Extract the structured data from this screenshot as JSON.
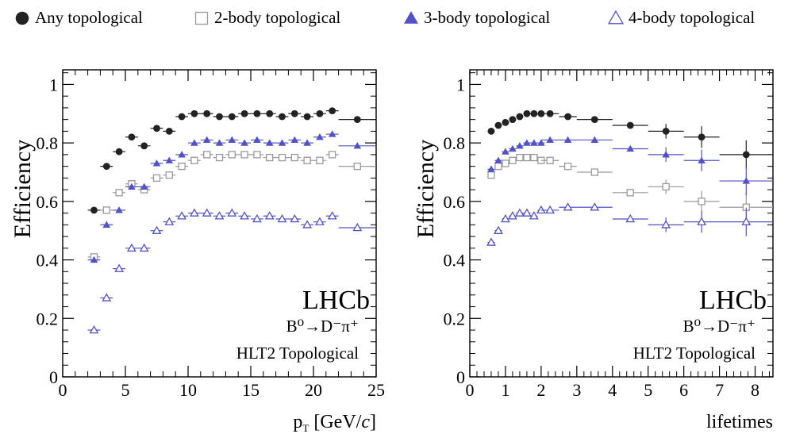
{
  "legend": [
    {
      "label": "Any topological",
      "marker": "filled-circle",
      "color": "#222222"
    },
    {
      "label": "2-body topological",
      "marker": "open-square",
      "color": "#9a9a9a"
    },
    {
      "label": "3-body topological",
      "marker": "filled-triangle",
      "color": "#5252c8"
    },
    {
      "label": "4-body topological",
      "marker": "open-triangle",
      "color": "#5252c8"
    }
  ],
  "chart_data": [
    {
      "type": "scatter",
      "xlabel": "p_T [GeV/c]",
      "xlabel_main": "p",
      "xlabel_sub": "T",
      "xlabel_rest": " [GeV/",
      "xlabel_c": "c",
      "xlabel_end": "]",
      "ylabel": "Efficiency",
      "xlim": [
        0,
        25
      ],
      "ylim": [
        0,
        1.05
      ],
      "xticks": [
        0,
        5,
        10,
        15,
        20,
        25
      ],
      "xtick_labels": [
        "0",
        "5",
        "10",
        "15",
        "20",
        "25"
      ],
      "yticks": [
        0,
        0.2,
        0.4,
        0.6,
        0.8,
        1
      ],
      "ytick_labels": [
        "0",
        "0.2",
        "0.4",
        "0.6",
        "0.8",
        "1"
      ],
      "grid": false,
      "experiment_label": "LHCb",
      "decay_label": "B⁰→D⁻π⁺",
      "trigger_label": "HLT2 Topological",
      "x": [
        2.5,
        3.5,
        4.5,
        5.5,
        6.5,
        7.5,
        8.5,
        9.5,
        10.5,
        11.5,
        12.5,
        13.5,
        14.5,
        15.5,
        16.5,
        17.5,
        18.5,
        19.5,
        20.5,
        21.5,
        23.5
      ],
      "xerr": [
        0.5,
        0.5,
        0.5,
        0.5,
        0.5,
        0.5,
        0.5,
        0.5,
        0.5,
        0.5,
        0.5,
        0.5,
        0.5,
        0.5,
        0.5,
        0.5,
        0.5,
        0.5,
        0.5,
        0.5,
        1.5
      ],
      "series": [
        {
          "marker": "filled-circle",
          "color": "#222222",
          "values": [
            0.57,
            0.72,
            0.77,
            0.82,
            0.79,
            0.85,
            0.84,
            0.89,
            0.9,
            0.9,
            0.89,
            0.89,
            0.9,
            0.9,
            0.9,
            0.89,
            0.9,
            0.89,
            0.9,
            0.91,
            0.88
          ]
        },
        {
          "marker": "open-square",
          "color": "#9a9a9a",
          "values": [
            0.41,
            0.57,
            0.63,
            0.66,
            0.64,
            0.68,
            0.69,
            0.72,
            0.74,
            0.76,
            0.75,
            0.76,
            0.76,
            0.76,
            0.75,
            0.75,
            0.75,
            0.74,
            0.74,
            0.76,
            0.72
          ]
        },
        {
          "marker": "filled-triangle",
          "color": "#5252c8",
          "values": [
            0.4,
            0.52,
            0.57,
            0.65,
            0.65,
            0.73,
            0.74,
            0.76,
            0.8,
            0.81,
            0.8,
            0.81,
            0.8,
            0.81,
            0.8,
            0.8,
            0.81,
            0.8,
            0.82,
            0.83,
            0.79
          ]
        },
        {
          "marker": "open-triangle",
          "color": "#5252c8",
          "values": [
            0.16,
            0.27,
            0.37,
            0.44,
            0.44,
            0.5,
            0.53,
            0.55,
            0.56,
            0.56,
            0.55,
            0.56,
            0.55,
            0.54,
            0.55,
            0.54,
            0.54,
            0.52,
            0.53,
            0.55,
            0.51
          ]
        }
      ]
    },
    {
      "type": "scatter",
      "xlabel": "lifetimes",
      "ylabel": "Efficiency",
      "xlim": [
        0,
        8.5
      ],
      "ylim": [
        0,
        1.05
      ],
      "xticks": [
        0,
        1,
        2,
        3,
        4,
        5,
        6,
        7,
        8
      ],
      "xtick_labels": [
        "0",
        "1",
        "2",
        "3",
        "4",
        "5",
        "6",
        "7",
        "8"
      ],
      "yticks": [
        0,
        0.2,
        0.4,
        0.6,
        0.8,
        1
      ],
      "ytick_labels": [
        "0",
        "0.2",
        "0.4",
        "0.6",
        "0.8",
        "1"
      ],
      "grid": false,
      "experiment_label": "LHCb",
      "decay_label": "B⁰→D⁻π⁺",
      "trigger_label": "HLT2 Topological",
      "x": [
        0.6,
        0.8,
        1.0,
        1.2,
        1.4,
        1.6,
        1.8,
        2.0,
        2.25,
        2.75,
        3.5,
        4.5,
        5.5,
        6.5,
        7.75
      ],
      "xerr": [
        0.1,
        0.1,
        0.1,
        0.1,
        0.1,
        0.1,
        0.1,
        0.1,
        0.25,
        0.25,
        0.5,
        0.5,
        0.5,
        0.5,
        0.75
      ],
      "series": [
        {
          "marker": "filled-circle",
          "color": "#222222",
          "values": [
            0.84,
            0.86,
            0.87,
            0.88,
            0.89,
            0.9,
            0.9,
            0.9,
            0.9,
            0.89,
            0.88,
            0.86,
            0.84,
            0.82,
            0.76
          ]
        },
        {
          "marker": "open-square",
          "color": "#9a9a9a",
          "values": [
            0.69,
            0.72,
            0.73,
            0.74,
            0.75,
            0.75,
            0.75,
            0.74,
            0.74,
            0.72,
            0.7,
            0.63,
            0.65,
            0.6,
            0.58
          ]
        },
        {
          "marker": "filled-triangle",
          "color": "#5252c8",
          "values": [
            0.71,
            0.74,
            0.77,
            0.78,
            0.79,
            0.8,
            0.8,
            0.8,
            0.81,
            0.81,
            0.81,
            0.78,
            0.76,
            0.74,
            0.67
          ]
        },
        {
          "marker": "open-triangle",
          "color": "#5252c8",
          "values": [
            0.46,
            0.5,
            0.54,
            0.55,
            0.56,
            0.56,
            0.55,
            0.57,
            0.57,
            0.58,
            0.58,
            0.54,
            0.52,
            0.53,
            0.53
          ]
        }
      ]
    }
  ]
}
